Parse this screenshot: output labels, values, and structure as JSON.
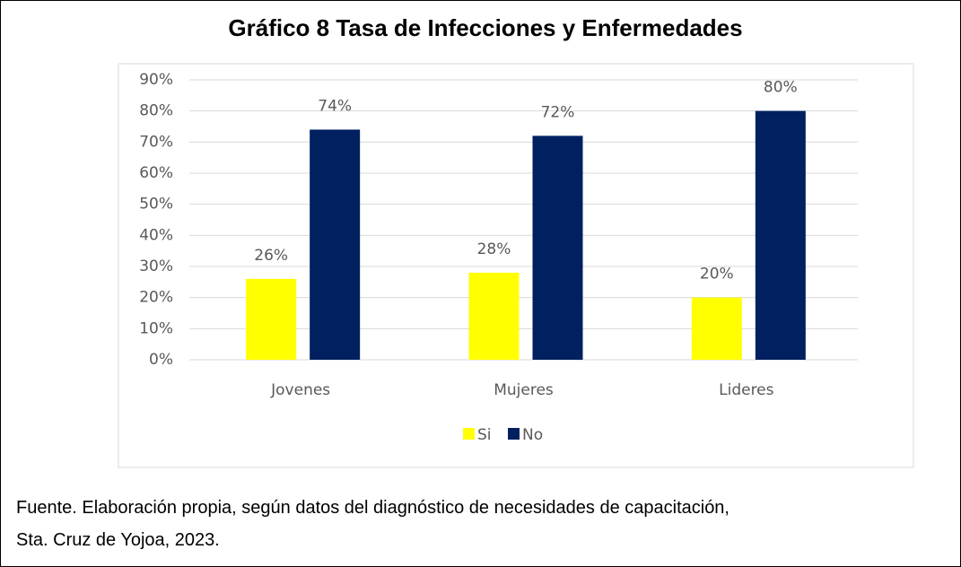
{
  "chart_data": {
    "type": "bar",
    "title": "Gráfico 8 Tasa de Infecciones y Enfermedades",
    "categories": [
      "Jovenes",
      "Mujeres",
      "Lideres"
    ],
    "series": [
      {
        "name": "Si",
        "color": "#ffff00",
        "values": [
          26,
          28,
          20
        ],
        "value_labels": [
          "26%",
          "28%",
          "20%"
        ]
      },
      {
        "name": "No",
        "color": "#002060",
        "values": [
          74,
          72,
          80
        ],
        "value_labels": [
          "74%",
          "72%",
          "80%"
        ]
      }
    ],
    "ylim": [
      0,
      90
    ],
    "yticks": [
      {
        "value": 0,
        "label": "0%"
      },
      {
        "value": 10,
        "label": "10%"
      },
      {
        "value": 20,
        "label": "20%"
      },
      {
        "value": 30,
        "label": "30%"
      },
      {
        "value": 40,
        "label": "40%"
      },
      {
        "value": 50,
        "label": "50%"
      },
      {
        "value": 60,
        "label": "60%"
      },
      {
        "value": 70,
        "label": "70%"
      },
      {
        "value": 80,
        "label": "80%"
      },
      {
        "value": 90,
        "label": "90%"
      }
    ],
    "grid": true,
    "legend": "bottom"
  },
  "caption": {
    "lines": [
      "Fuente. Elaboración propia, según datos del diagnóstico de necesidades de capacitación,",
      "Sta. Cruz de Yojoa, 2023."
    ]
  }
}
